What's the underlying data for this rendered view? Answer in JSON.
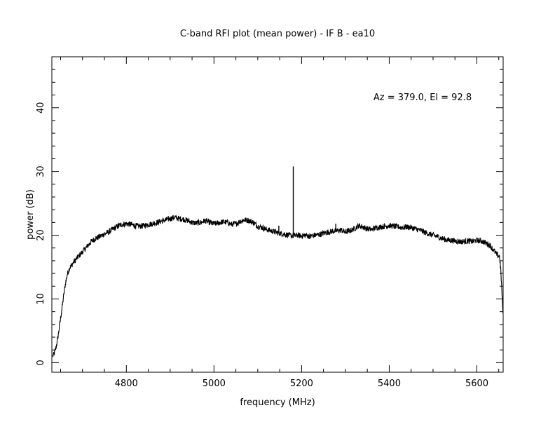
{
  "chart_data": {
    "type": "line",
    "title": "C-band RFI plot (mean power) - IF B - ea10",
    "xlabel": "frequency (MHz)",
    "ylabel": "power (dB)",
    "annotation": "Az = 379.0, El = 92.8",
    "xlim": [
      4630,
      5660
    ],
    "ylim": [
      -1.5,
      48
    ],
    "x_ticks": [
      4800,
      5000,
      5200,
      5400,
      5600
    ],
    "y_ticks": [
      0,
      10,
      20,
      30,
      40
    ],
    "x_tick_labels": [
      "4800",
      "5000",
      "5200",
      "5400",
      "5600"
    ],
    "y_tick_labels": [
      "0",
      "10",
      "20",
      "30",
      "40"
    ],
    "grid": false,
    "line_color": "#000000",
    "series": [
      {
        "x": [
          4632,
          4636,
          4640,
          4645,
          4650,
          4655,
          4660,
          4665,
          4670,
          4680,
          4690,
          4700,
          4710,
          4720,
          4730,
          4740,
          4750,
          4760,
          4770,
          4780,
          4790,
          4800,
          4810,
          4820,
          4830,
          4840,
          4850,
          4860,
          4870,
          4880,
          4890,
          4900,
          4910,
          4920,
          4930,
          4940,
          4950,
          4960,
          4970,
          4980,
          4990,
          5000,
          5010,
          5020,
          5030,
          5040,
          5050,
          5060,
          5070,
          5080,
          5090,
          5100,
          5110,
          5120,
          5130,
          5140,
          5150,
          5160,
          5170,
          5180,
          5190,
          5200,
          5210,
          5220,
          5230,
          5240,
          5250,
          5260,
          5270,
          5280,
          5290,
          5300,
          5310,
          5320,
          5330,
          5340,
          5350,
          5360,
          5370,
          5380,
          5390,
          5400,
          5410,
          5420,
          5430,
          5440,
          5450,
          5460,
          5470,
          5480,
          5490,
          5500,
          5510,
          5520,
          5530,
          5540,
          5550,
          5560,
          5570,
          5580,
          5590,
          5600,
          5610,
          5620,
          5630,
          5640,
          5645,
          5648,
          5650,
          5652,
          5655,
          5658,
          5660
        ],
        "y": [
          1.0,
          1.5,
          2.5,
          4.5,
          7.0,
          9.5,
          12.0,
          13.8,
          14.8,
          15.8,
          16.6,
          17.4,
          18.2,
          19.0,
          19.5,
          19.8,
          20.2,
          20.5,
          21.0,
          21.4,
          21.7,
          21.8,
          21.7,
          21.5,
          21.4,
          21.5,
          21.7,
          21.8,
          22.0,
          22.2,
          22.4,
          22.6,
          22.8,
          22.6,
          22.5,
          22.3,
          22.0,
          21.9,
          22.0,
          22.3,
          22.0,
          21.8,
          21.9,
          22.1,
          22.0,
          21.7,
          21.8,
          22.2,
          22.4,
          22.3,
          22.0,
          21.4,
          21.2,
          20.9,
          20.7,
          20.5,
          20.3,
          20.2,
          20.0,
          19.9,
          20.0,
          19.9,
          20.0,
          19.8,
          20.0,
          20.1,
          20.3,
          20.5,
          20.6,
          20.7,
          20.8,
          20.5,
          20.7,
          21.0,
          21.5,
          21.3,
          21.0,
          20.9,
          21.2,
          21.3,
          21.4,
          21.5,
          21.4,
          21.3,
          21.2,
          21.3,
          21.2,
          21.0,
          20.8,
          20.5,
          20.2,
          20.0,
          19.8,
          19.5,
          19.3,
          19.2,
          19.1,
          19.0,
          19.0,
          19.1,
          19.0,
          19.2,
          19.1,
          18.8,
          18.4,
          17.5,
          17.0,
          16.8,
          16.7,
          16.7,
          14.0,
          10.0,
          7.0
        ]
      }
    ],
    "spikes": [
      {
        "x": 5181,
        "y": 30.8
      },
      {
        "x": 5148,
        "y": 21.5
      },
      {
        "x": 5278,
        "y": 21.8
      }
    ]
  }
}
